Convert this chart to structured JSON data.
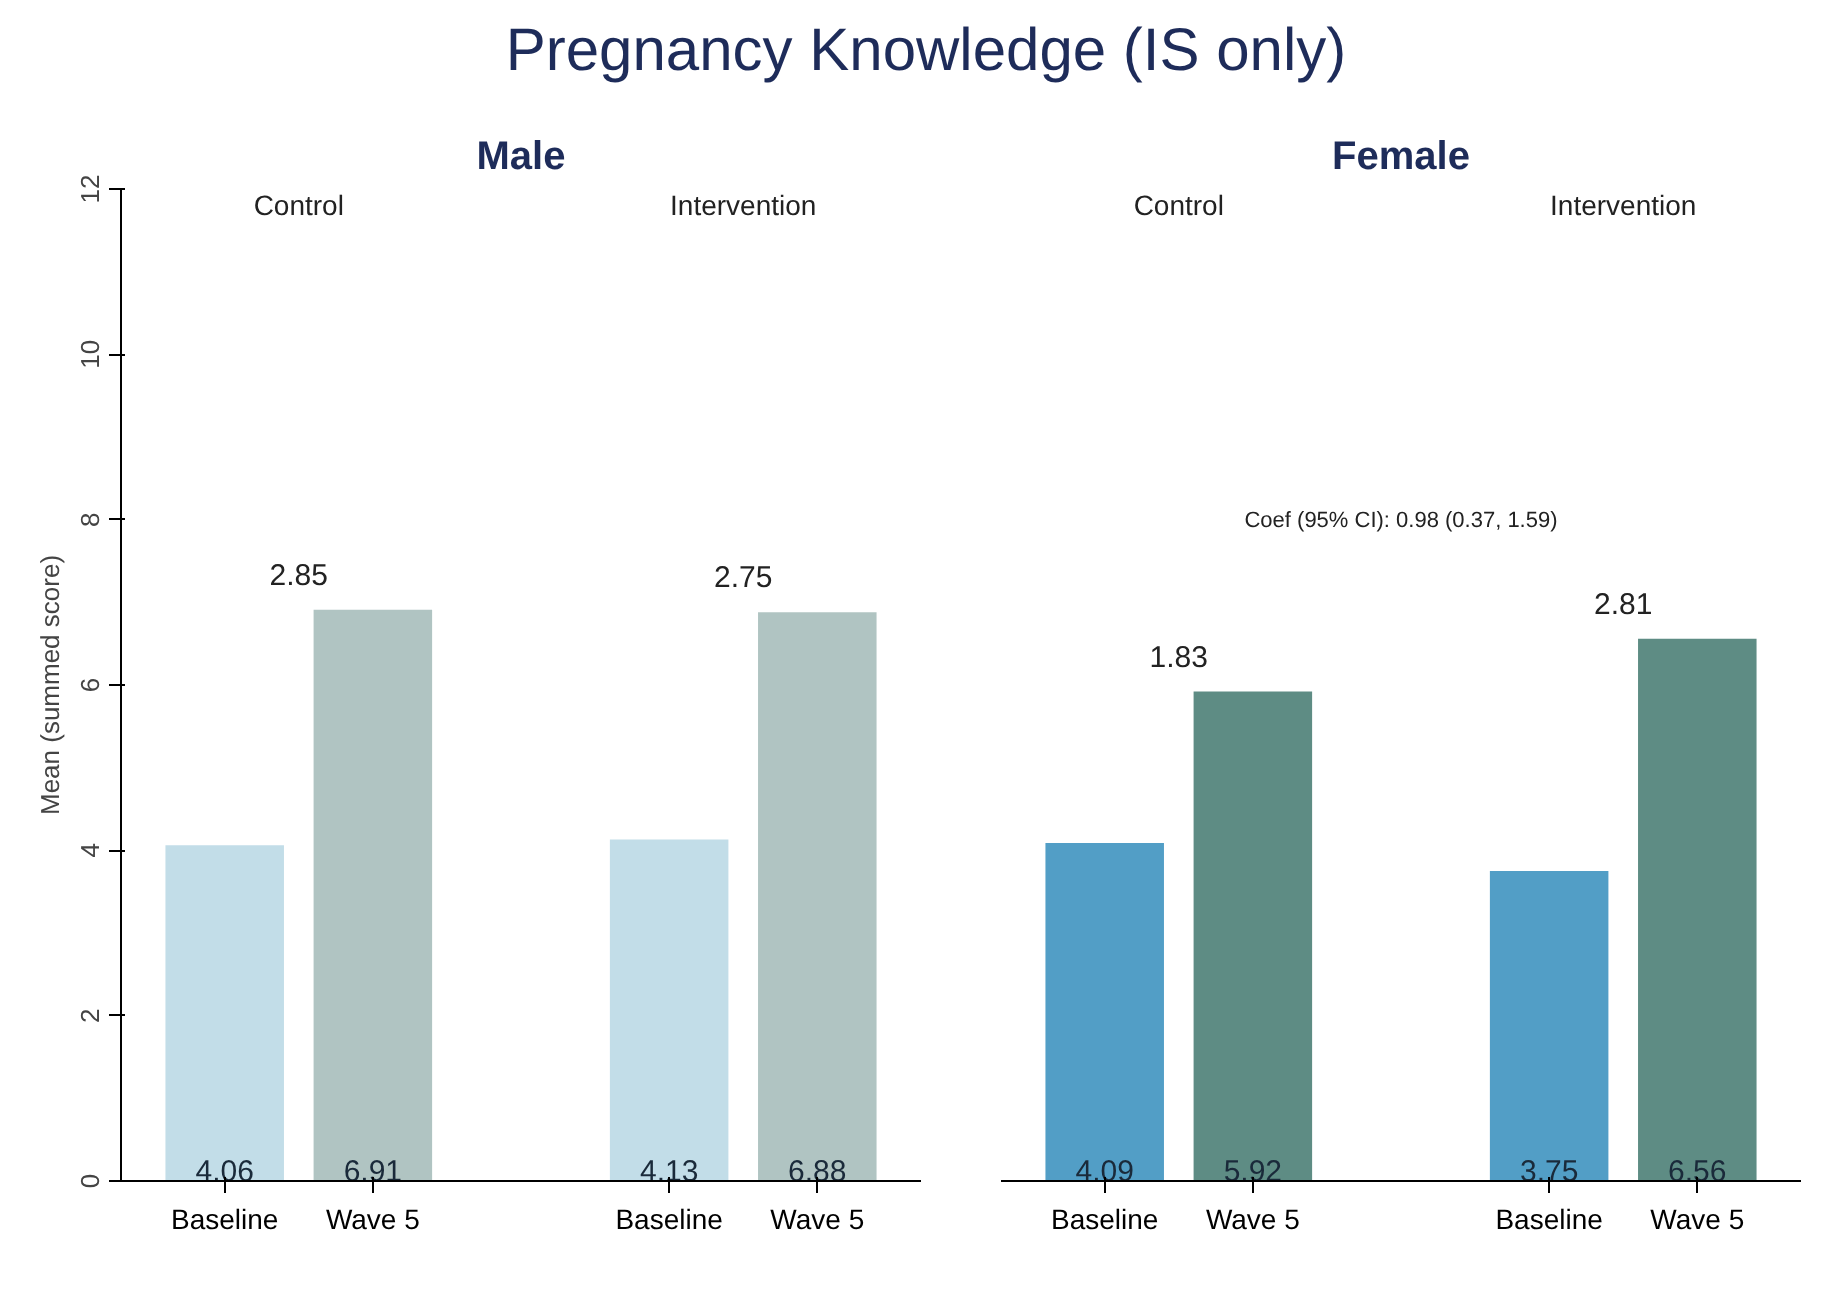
{
  "chart_data": [
    {
      "type": "bar",
      "title": "Pregnancy Knowledge (IS only)",
      "subtitle": "Male",
      "ylabel": "Mean (summed score)",
      "categories": [
        "Baseline",
        "Wave 5",
        "Baseline",
        "Wave 5"
      ],
      "values": [
        4.06,
        6.91,
        4.13,
        6.88
      ],
      "colors": [
        "#c2dde8",
        "#b0c4c2",
        "#c2dde8",
        "#b0c4c2"
      ],
      "data_labels": true,
      "ylim": [
        0,
        12
      ],
      "yticks": [
        0,
        2,
        4,
        6,
        8,
        10,
        12
      ],
      "grid": false,
      "annotations": [
        "Control",
        "Intervention",
        "2.85",
        "2.75"
      ]
    },
    {
      "type": "bar",
      "subtitle": "Female",
      "categories": [
        "Baseline",
        "Wave 5",
        "Baseline",
        "Wave 5"
      ],
      "values": [
        4.09,
        5.92,
        3.75,
        6.56
      ],
      "colors": [
        "#529ec6",
        "#5e8c84",
        "#529ec6",
        "#5e8c84"
      ],
      "data_labels": true,
      "ylim": [
        0,
        12
      ],
      "yticks": [
        0,
        2,
        4,
        6,
        8,
        10,
        12
      ],
      "grid": false,
      "tick_labels": "x",
      "annotations": [
        "Control",
        "Intervention",
        "1.83",
        "2.81",
        "Coef (95% CI): 0.98 (0.37, 1.59)"
      ]
    }
  ]
}
